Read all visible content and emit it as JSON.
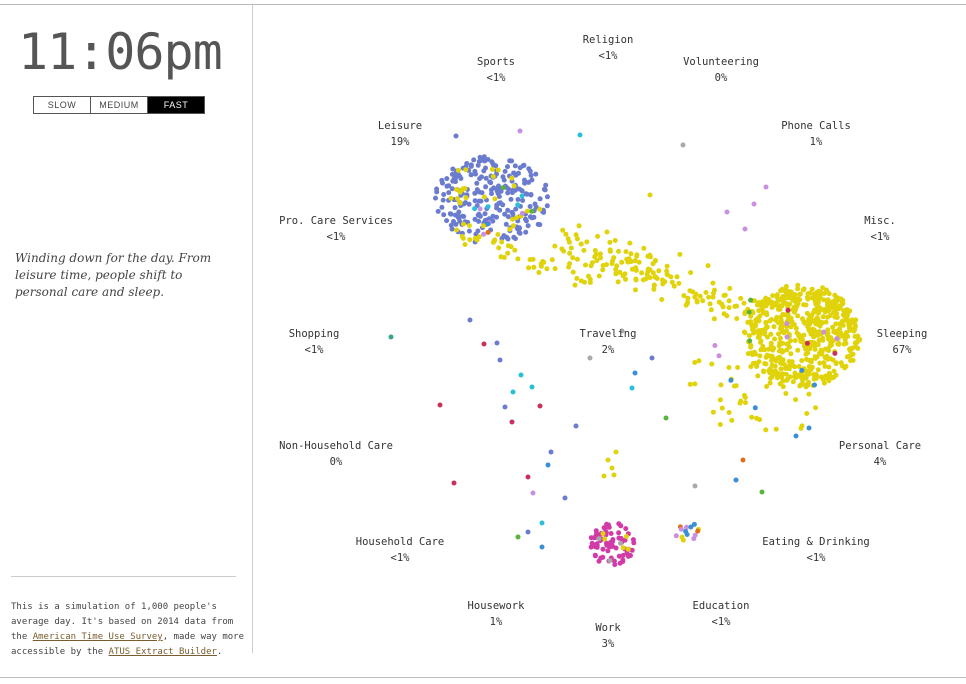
{
  "clock": "11:06pm",
  "speed": {
    "options": [
      "SLOW",
      "MEDIUM",
      "FAST"
    ],
    "selected": "FAST"
  },
  "narrative": "Winding down for the day. From leisure time, people shift to personal care and sleep.",
  "footer": {
    "text_1": "This is a simulation of 1,000 people's average day. It's based on 2014 data from the ",
    "link_1": "American Time Use Survey",
    "text_2": ", made way more accessible by the ",
    "link_2": "ATUS Extract Builder",
    "text_3": "."
  },
  "activities": [
    {
      "name": "Religion",
      "pct": "<1%"
    },
    {
      "name": "Sports",
      "pct": "<1%"
    },
    {
      "name": "Volunteering",
      "pct": "0%"
    },
    {
      "name": "Leisure",
      "pct": "19%"
    },
    {
      "name": "Phone Calls",
      "pct": "1%"
    },
    {
      "name": "Pro. Care Services",
      "pct": "<1%"
    },
    {
      "name": "Misc.",
      "pct": "<1%"
    },
    {
      "name": "Shopping",
      "pct": "<1%"
    },
    {
      "name": "Traveling",
      "pct": "2%"
    },
    {
      "name": "Sleeping",
      "pct": "67%"
    },
    {
      "name": "Non-Household Care",
      "pct": "0%"
    },
    {
      "name": "Personal Care",
      "pct": "4%"
    },
    {
      "name": "Household Care",
      "pct": "<1%"
    },
    {
      "name": "Eating & Drinking",
      "pct": "<1%"
    },
    {
      "name": "Housework",
      "pct": "1%"
    },
    {
      "name": "Education",
      "pct": "<1%"
    },
    {
      "name": "Work",
      "pct": "3%"
    }
  ],
  "colors": {
    "sleeping": "#e0d30a",
    "leisure": "#6b7ccf",
    "work": "#d23aa8",
    "eating": "#e06f1a",
    "travel": "#a9a9a9",
    "misc": "#c98fe0",
    "care": "#3a8fd6",
    "cyan": "#28c0d8",
    "green": "#58b43a",
    "red": "#c8325a",
    "teal": "#3aa58a"
  }
}
